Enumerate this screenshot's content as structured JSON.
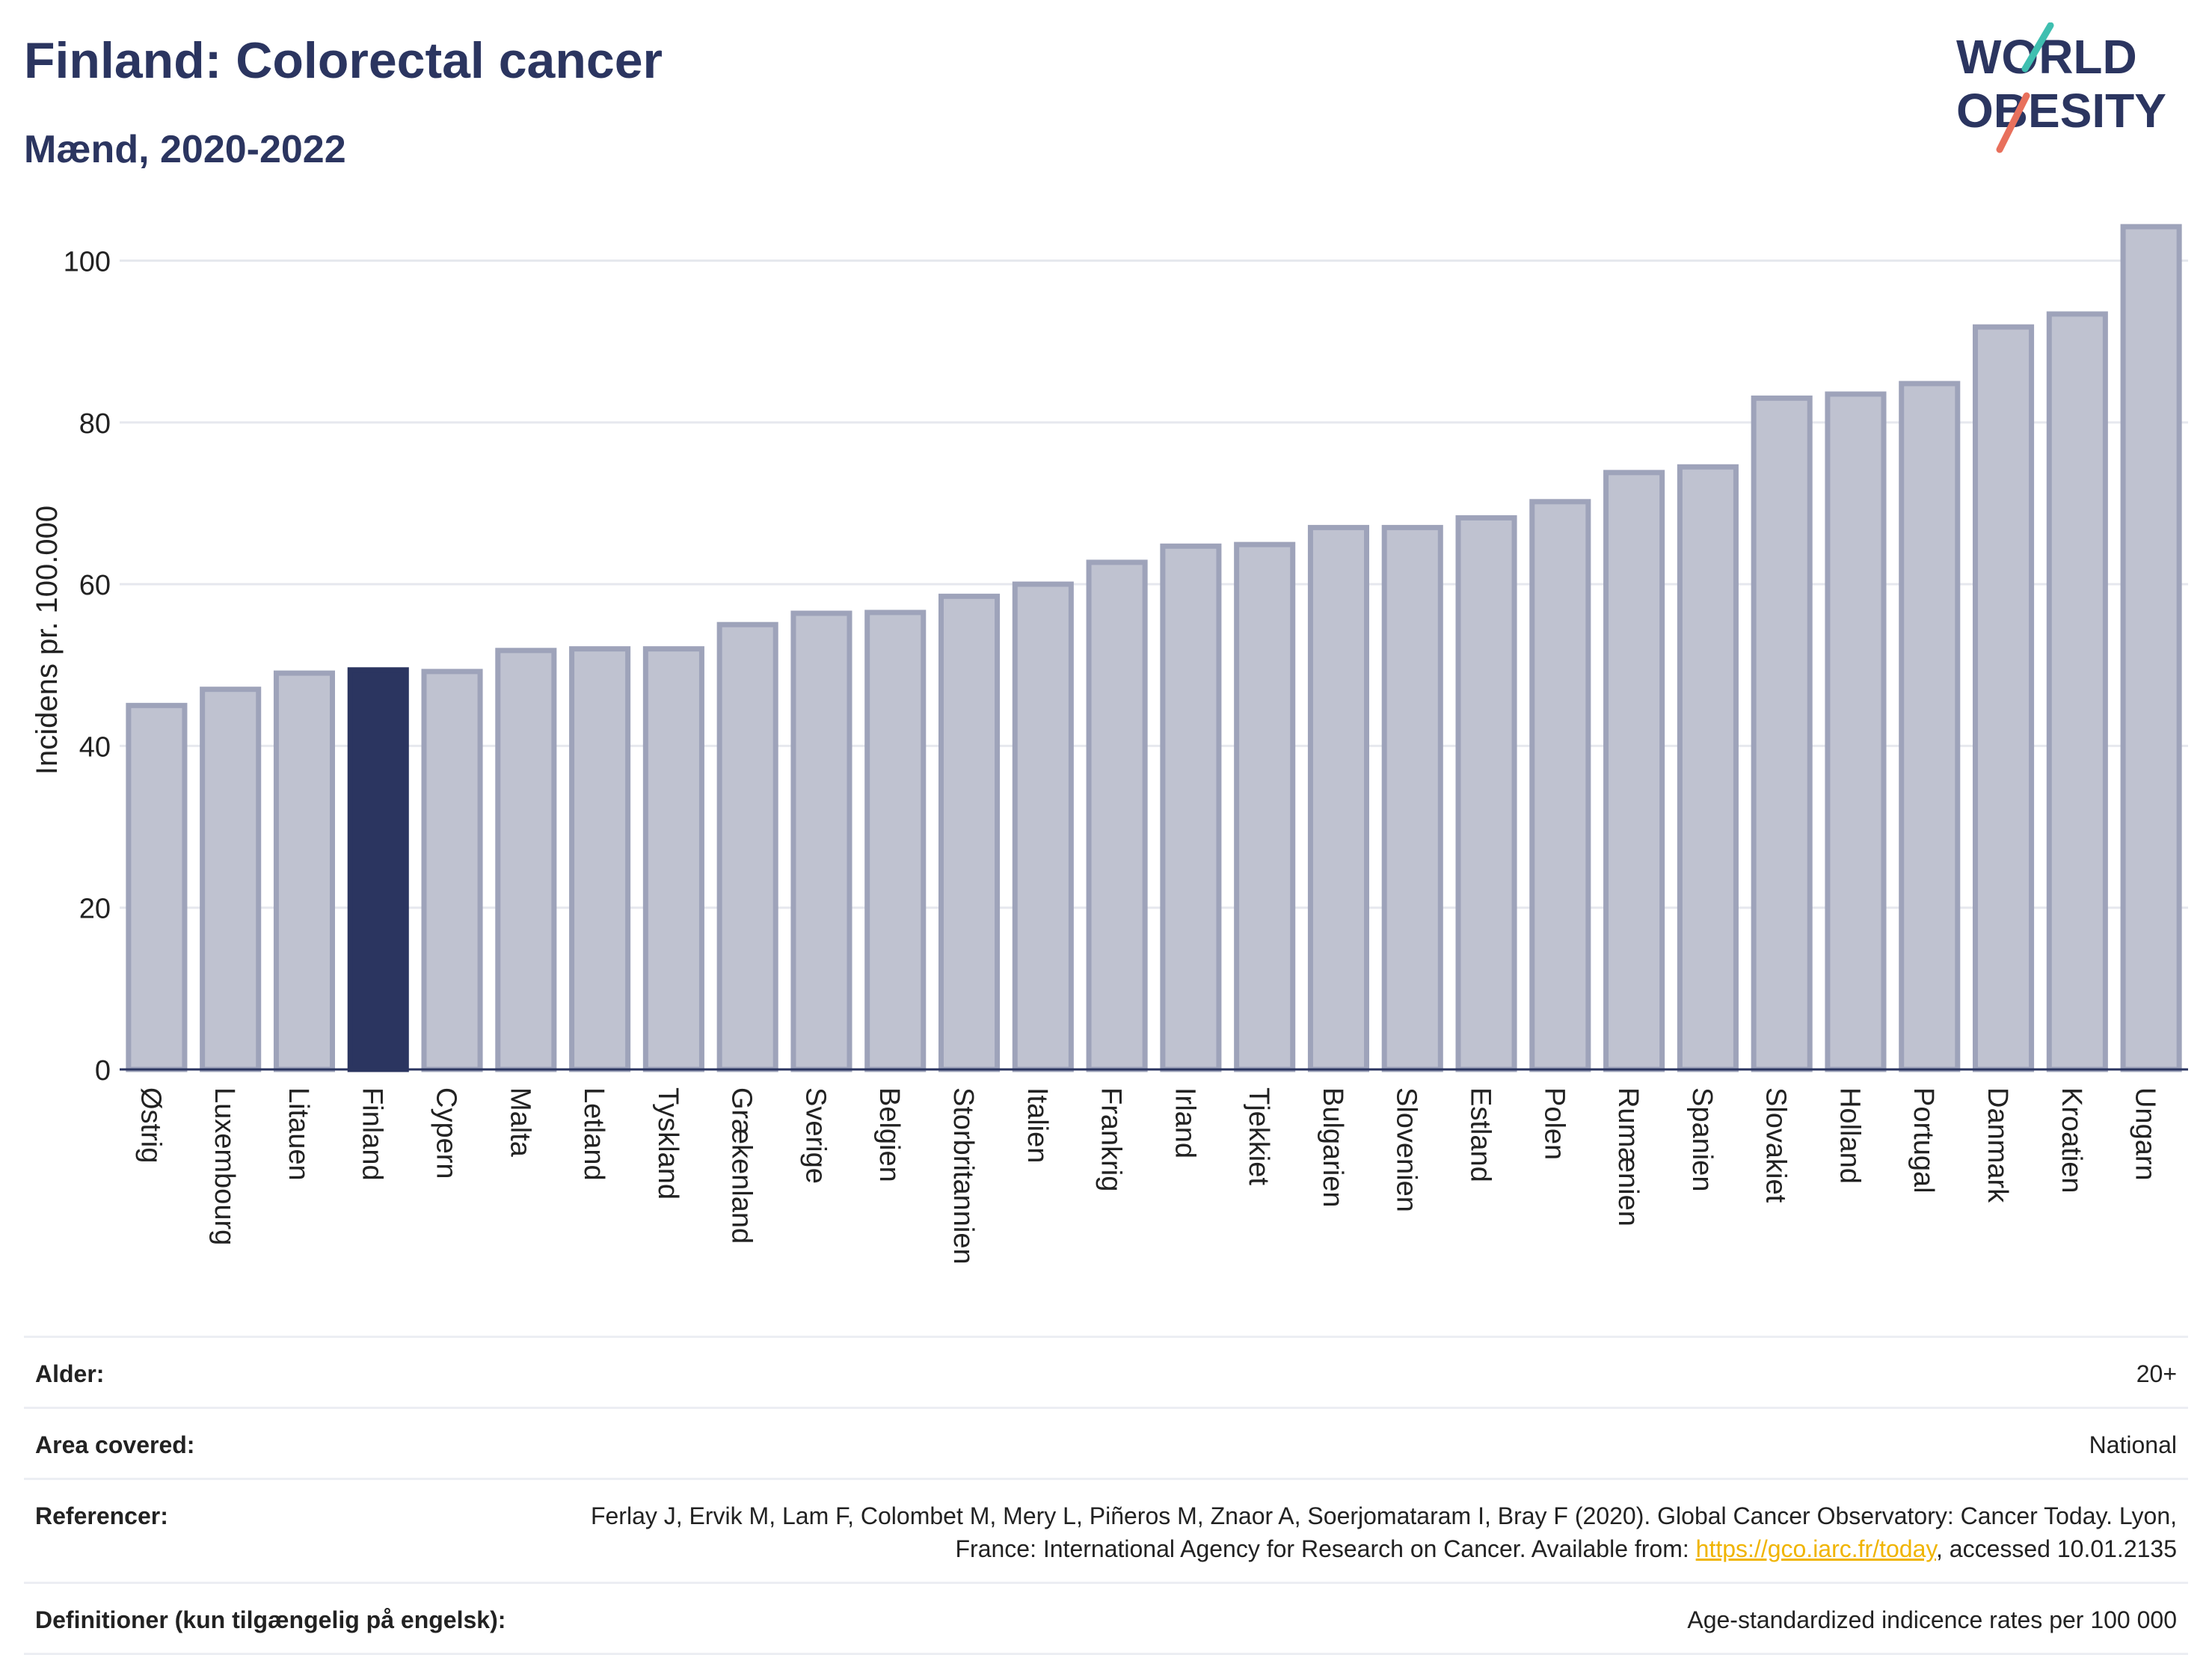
{
  "header": {
    "title": "Finland: Colorectal cancer",
    "subtitle": "Mænd, 2020-2022"
  },
  "logo": {
    "line1": "WORLD",
    "line2": "OBESITY",
    "accent_teal": "#3fbfb0",
    "accent_red": "#e8705c",
    "text_color": "#2b3560"
  },
  "chart_data": {
    "type": "bar",
    "ylabel": "Incidens pr. 100.000",
    "xlabel": "",
    "ylim": [
      0,
      108
    ],
    "yticks": [
      0,
      20,
      40,
      60,
      80,
      100
    ],
    "grid": true,
    "highlight": "Finland",
    "bar_color": "#bfc2d0",
    "bar_edge_color": "#9ea3ba",
    "highlight_color": "#2b3560",
    "categories": [
      "Østrig",
      "Luxembourg",
      "Litauen",
      "Finland",
      "Cypern",
      "Malta",
      "Letland",
      "Tyskland",
      "Grækenland",
      "Sverige",
      "Belgien",
      "Storbritannien",
      "Italien",
      "Frankrig",
      "Irland",
      "Tjekkiet",
      "Bulgarien",
      "Slovenien",
      "Estland",
      "Polen",
      "Rumænien",
      "Spanien",
      "Slovakiet",
      "Holland",
      "Portugal",
      "Danmark",
      "Kroatien",
      "Ungarn"
    ],
    "values": [
      45.0,
      47.0,
      49.0,
      49.4,
      49.2,
      51.8,
      52.0,
      52.0,
      55.0,
      56.4,
      56.5,
      58.5,
      60.0,
      62.7,
      64.7,
      64.9,
      67.0,
      67.0,
      68.2,
      70.2,
      73.8,
      74.5,
      83.0,
      83.5,
      84.8,
      91.8,
      93.4,
      104.2
    ]
  },
  "meta": {
    "rows": [
      {
        "label": "Alder:",
        "value": "20+"
      },
      {
        "label": "Area covered:",
        "value": "National"
      },
      {
        "label": "Referencer:",
        "value_pre": "Ferlay J, Ervik M, Lam F, Colombet M, Mery L, Piñeros M, Znaor A, Soerjomataram I, Bray F (2020). Global Cancer Observatory: Cancer Today. Lyon, France: International Agency for Research on Cancer. Available from: ",
        "link": "https://gco.iarc.fr/today",
        "value_post": ", accessed 10.01.2135"
      },
      {
        "label": "Definitioner (kun tilgængelig på engelsk):",
        "value": "Age-standardized indicence rates per 100 000"
      }
    ]
  }
}
